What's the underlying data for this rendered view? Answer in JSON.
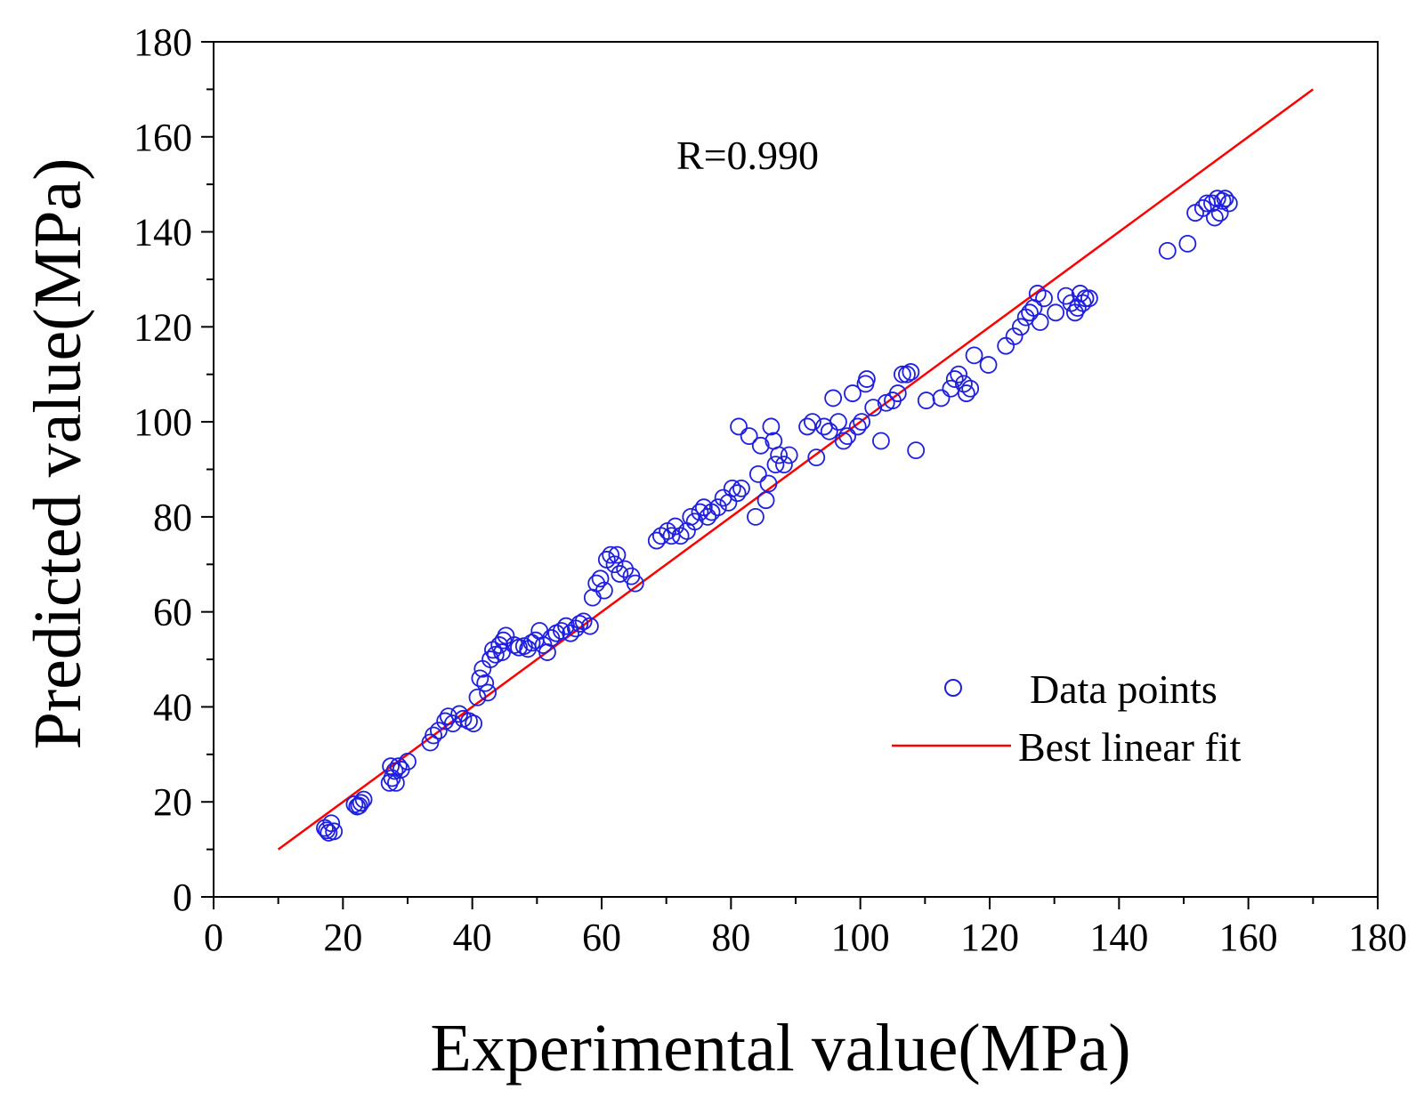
{
  "chart_data": {
    "type": "scatter",
    "title": "",
    "xlabel": "Experimental value(MPa)",
    "ylabel": "Predicted value(MPa)",
    "xlim": [
      0,
      180
    ],
    "ylim": [
      0,
      180
    ],
    "xticks": [
      "0",
      "20",
      "40",
      "60",
      "80",
      "100",
      "120",
      "140",
      "160",
      "180"
    ],
    "yticks": [
      "0",
      "20",
      "40",
      "60",
      "80",
      "100",
      "120",
      "140",
      "160",
      "180"
    ],
    "annotation": "R=0.990",
    "grid": false,
    "legend_position": "bottom-right",
    "colors": {
      "points": "#1f1fe0",
      "fit": "#ff0000",
      "axis": "#000000"
    },
    "series": [
      {
        "name": "Data points",
        "kind": "scatter",
        "points": [
          [
            17.5,
            14
          ],
          [
            17.8,
            13.5
          ],
          [
            18.2,
            15.5
          ],
          [
            18.6,
            13.8
          ],
          [
            17.2,
            14.5
          ],
          [
            21.8,
            19.5
          ],
          [
            22.2,
            19
          ],
          [
            22.8,
            19.8
          ],
          [
            23.2,
            20.5
          ],
          [
            22.5,
            19.2
          ],
          [
            27.2,
            24
          ],
          [
            27.6,
            25
          ],
          [
            28,
            26.5
          ],
          [
            28.2,
            24
          ],
          [
            28.6,
            27.5
          ],
          [
            27.4,
            27.5
          ],
          [
            29,
            26.8
          ],
          [
            30,
            28.5
          ],
          [
            33.5,
            32.5
          ],
          [
            34,
            34
          ],
          [
            34.8,
            35
          ],
          [
            35.8,
            37
          ],
          [
            36.3,
            38
          ],
          [
            37,
            36.5
          ],
          [
            38,
            38.5
          ],
          [
            38.6,
            37.5
          ],
          [
            39.5,
            37
          ],
          [
            40.2,
            36.5
          ],
          [
            40.8,
            42
          ],
          [
            41.2,
            46
          ],
          [
            41.6,
            48
          ],
          [
            42,
            45
          ],
          [
            42.4,
            43
          ],
          [
            42.8,
            50
          ],
          [
            43.2,
            52
          ],
          [
            43.6,
            51
          ],
          [
            44.2,
            53
          ],
          [
            44.8,
            54
          ],
          [
            45.2,
            55
          ],
          [
            44.6,
            51.5
          ],
          [
            46.5,
            53
          ],
          [
            47.2,
            52.5
          ],
          [
            48,
            52.8
          ],
          [
            48.6,
            52.2
          ],
          [
            49.2,
            53.5
          ],
          [
            49.8,
            54
          ],
          [
            50.4,
            56
          ],
          [
            51,
            53
          ],
          [
            51.6,
            51.5
          ],
          [
            52.2,
            54.5
          ],
          [
            53,
            55.5
          ],
          [
            53.8,
            56
          ],
          [
            54.5,
            57
          ],
          [
            55.2,
            55.5
          ],
          [
            56,
            56.5
          ],
          [
            56.6,
            57.5
          ],
          [
            57.2,
            58
          ],
          [
            58.2,
            57
          ],
          [
            58.6,
            63
          ],
          [
            59.2,
            66
          ],
          [
            59.8,
            67
          ],
          [
            60.4,
            64.5
          ],
          [
            60.8,
            71
          ],
          [
            61.4,
            72
          ],
          [
            62,
            70
          ],
          [
            62.4,
            72
          ],
          [
            62.8,
            68
          ],
          [
            63.6,
            69
          ],
          [
            64.6,
            67.5
          ],
          [
            65.2,
            66
          ],
          [
            68.5,
            75
          ],
          [
            69.2,
            76
          ],
          [
            70.2,
            77
          ],
          [
            70.8,
            76
          ],
          [
            71.4,
            78
          ],
          [
            72.2,
            76
          ],
          [
            73.2,
            77
          ],
          [
            73.8,
            80
          ],
          [
            74.4,
            79
          ],
          [
            75.2,
            81
          ],
          [
            75.8,
            82
          ],
          [
            76.4,
            80
          ],
          [
            77,
            81
          ],
          [
            78,
            82
          ],
          [
            78.8,
            84
          ],
          [
            79.6,
            83
          ],
          [
            80.2,
            86
          ],
          [
            81,
            85
          ],
          [
            81.6,
            86
          ],
          [
            81.2,
            99
          ],
          [
            82.8,
            97
          ],
          [
            83.8,
            80
          ],
          [
            84.2,
            89
          ],
          [
            84.6,
            95
          ],
          [
            85.4,
            83.5
          ],
          [
            85.8,
            87
          ],
          [
            86.2,
            99
          ],
          [
            86.6,
            96
          ],
          [
            86.9,
            91
          ],
          [
            87.4,
            93
          ],
          [
            88.2,
            91
          ],
          [
            89,
            93
          ],
          [
            91.8,
            99
          ],
          [
            92.6,
            100
          ],
          [
            93.2,
            92.5
          ],
          [
            94.4,
            99
          ],
          [
            95.2,
            98
          ],
          [
            95.8,
            105
          ],
          [
            96.6,
            100
          ],
          [
            97.4,
            96
          ],
          [
            98,
            97
          ],
          [
            98.8,
            106
          ],
          [
            99.6,
            99
          ],
          [
            100.2,
            100
          ],
          [
            100.8,
            108
          ],
          [
            101,
            109
          ],
          [
            102,
            103
          ],
          [
            103.2,
            96
          ],
          [
            104,
            104
          ],
          [
            105,
            104.5
          ],
          [
            105.8,
            106
          ],
          [
            106.5,
            110
          ],
          [
            107.2,
            110
          ],
          [
            107.8,
            110.5
          ],
          [
            108.6,
            94
          ],
          [
            110.2,
            104.5
          ],
          [
            112.5,
            105
          ],
          [
            114,
            107
          ],
          [
            114.6,
            109
          ],
          [
            115.2,
            110
          ],
          [
            116,
            108
          ],
          [
            116.4,
            106
          ],
          [
            117,
            107
          ],
          [
            117.6,
            114
          ],
          [
            119.8,
            112
          ],
          [
            122.5,
            116
          ],
          [
            123.8,
            118
          ],
          [
            124.8,
            120
          ],
          [
            125.6,
            122
          ],
          [
            126.2,
            123
          ],
          [
            126.8,
            124
          ],
          [
            127.4,
            127
          ],
          [
            127.8,
            121
          ],
          [
            128.4,
            126
          ],
          [
            130.2,
            123
          ],
          [
            131.8,
            126.5
          ],
          [
            132.6,
            125
          ],
          [
            133.2,
            123
          ],
          [
            133.6,
            124
          ],
          [
            134,
            127
          ],
          [
            134.4,
            125
          ],
          [
            134.8,
            126
          ],
          [
            135.4,
            126
          ],
          [
            147.5,
            136
          ],
          [
            150.6,
            137.5
          ],
          [
            151.8,
            144
          ],
          [
            153,
            145
          ],
          [
            153.6,
            146
          ],
          [
            154.4,
            146
          ],
          [
            154.8,
            143
          ],
          [
            155.2,
            147
          ],
          [
            155.6,
            144
          ],
          [
            156,
            146.5
          ],
          [
            156.4,
            147
          ],
          [
            157,
            146
          ]
        ]
      },
      {
        "name": "Best linear fit",
        "kind": "line",
        "points": [
          [
            10,
            10
          ],
          [
            170,
            170
          ]
        ]
      }
    ]
  }
}
